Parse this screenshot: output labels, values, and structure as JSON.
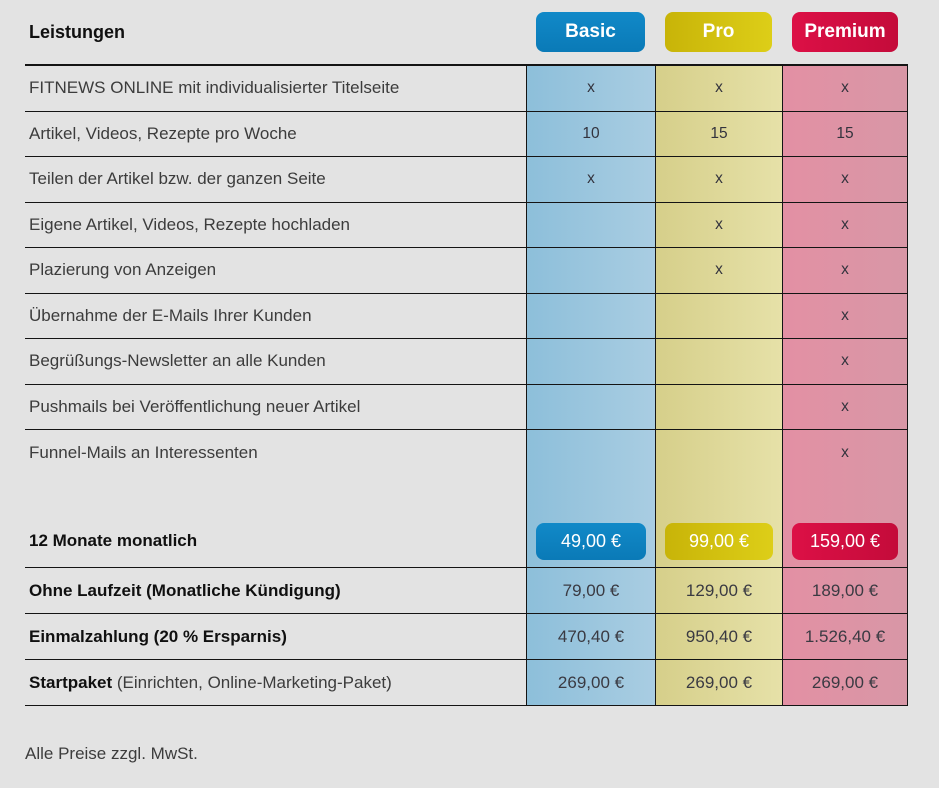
{
  "header": {
    "title": "Leistungen",
    "plans": [
      {
        "name": "Basic",
        "color": "#0d83c2"
      },
      {
        "name": "Pro",
        "color": "#d2be0e"
      },
      {
        "name": "Premium",
        "color": "#d30d44"
      }
    ]
  },
  "features": [
    {
      "label": "FITNEWS ONLINE mit individualisierter Titelseite",
      "basic": "x",
      "pro": "x",
      "premium": "x"
    },
    {
      "label": "Artikel, Videos, Rezepte pro Woche",
      "basic": "10",
      "pro": "15",
      "premium": "15"
    },
    {
      "label": "Teilen der Artikel bzw. der ganzen Seite",
      "basic": "x",
      "pro": "x",
      "premium": "x"
    },
    {
      "label": "Eigene Artikel, Videos, Rezepte hochladen",
      "basic": "",
      "pro": "x",
      "premium": "x"
    },
    {
      "label": "Plazierung von Anzeigen",
      "basic": "",
      "pro": "x",
      "premium": "x"
    },
    {
      "label": "Übernahme der E-Mails Ihrer Kunden",
      "basic": "",
      "pro": "",
      "premium": "x"
    },
    {
      "label": "Begrüßungs-Newsletter an alle Kunden",
      "basic": "",
      "pro": "",
      "premium": "x"
    },
    {
      "label": "Pushmails bei Veröffentlichung neuer Artikel",
      "basic": "",
      "pro": "",
      "premium": "x"
    },
    {
      "label": "Funnel-Mails an Interessenten",
      "basic": "",
      "pro": "",
      "premium": "x"
    }
  ],
  "pricing": {
    "monthly12": {
      "label": "12 Monate monatlich",
      "basic": "49,00 €",
      "pro": "99,00 €",
      "premium": "159,00 €"
    },
    "no_term": {
      "label": "Ohne Laufzeit (Monatliche Kündigung)",
      "basic": "79,00 €",
      "pro": "129,00 €",
      "premium": "189,00 €"
    },
    "one_time": {
      "label": "Einmalzahlung (20 % Ersparnis)",
      "basic": "470,40 €",
      "pro": "950,40 €",
      "premium": "1.526,40 €"
    },
    "starter": {
      "label_bold": "Startpaket",
      "label_rest": " (Einrichten, Online-Marketing-Paket)",
      "basic": "269,00 €",
      "pro": "269,00 €",
      "premium": "269,00 €"
    }
  },
  "footer": {
    "note": "Alle Preise zzgl. MwSt."
  },
  "colors": {
    "background": "#e3e3e3",
    "border": "#141414",
    "basic_accent": "#0d83c2",
    "pro_accent": "#d2be0e",
    "premium_accent": "#d30d44",
    "basic_tint": "#9ac6de",
    "pro_tint": "#ded899",
    "premium_tint": "#dd93a5"
  }
}
